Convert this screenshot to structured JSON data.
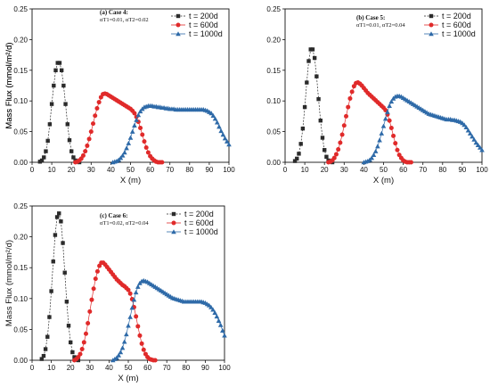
{
  "chart_data": [
    {
      "type": "scatter",
      "label": "(a) Case 4:",
      "params": "αT1=0.01, αT2=0.02",
      "xlabel": "X (m)",
      "ylabel": "Mass Flux (mmol/m²/d)",
      "xlim": [
        0,
        100
      ],
      "ylim": [
        0,
        0.25
      ],
      "xticks": [
        "0",
        "10",
        "20",
        "30",
        "40",
        "50",
        "60",
        "70",
        "80",
        "90",
        "100"
      ],
      "yticks": [
        "0.00",
        "0.05",
        "0.10",
        "0.15",
        "0.20",
        "0.25"
      ],
      "legend_position": "top-right",
      "series": [
        {
          "name": "t = 200d",
          "marker": "square",
          "color": "#2b2b2b",
          "dashed": true,
          "x": [
            4,
            5,
            6,
            7,
            8,
            9,
            10,
            11,
            12,
            13,
            14,
            15,
            16,
            17,
            18,
            19,
            20,
            21,
            22,
            23,
            24
          ],
          "y": [
            0.001,
            0.003,
            0.008,
            0.018,
            0.035,
            0.062,
            0.095,
            0.125,
            0.15,
            0.162,
            0.162,
            0.15,
            0.125,
            0.095,
            0.062,
            0.036,
            0.018,
            0.008,
            0.003,
            0.001,
            0.0
          ]
        },
        {
          "name": "t = 600d",
          "marker": "circle",
          "color": "#e02a2a",
          "dashed": false,
          "x": [
            22,
            23,
            24,
            25,
            26,
            27,
            28,
            29,
            30,
            31,
            32,
            33,
            34,
            35,
            36,
            37,
            38,
            39,
            40,
            41,
            42,
            43,
            44,
            45,
            46,
            47,
            48,
            49,
            50,
            51,
            52,
            53,
            54,
            55,
            56,
            57,
            58,
            59,
            60,
            61,
            62,
            63,
            64,
            65,
            66
          ],
          "y": [
            0.0,
            0.001,
            0.003,
            0.006,
            0.011,
            0.018,
            0.027,
            0.038,
            0.05,
            0.063,
            0.076,
            0.088,
            0.098,
            0.106,
            0.111,
            0.112,
            0.111,
            0.109,
            0.107,
            0.105,
            0.103,
            0.101,
            0.099,
            0.097,
            0.095,
            0.093,
            0.091,
            0.089,
            0.087,
            0.084,
            0.08,
            0.074,
            0.066,
            0.056,
            0.045,
            0.034,
            0.024,
            0.016,
            0.01,
            0.006,
            0.003,
            0.001,
            0.0,
            0.0,
            0.0
          ]
        },
        {
          "name": "t = 1000d",
          "marker": "triangle",
          "color": "#2e6aa8",
          "dashed": false,
          "x": [
            41,
            42,
            43,
            44,
            45,
            46,
            47,
            48,
            49,
            50,
            51,
            52,
            53,
            54,
            55,
            56,
            57,
            58,
            59,
            60,
            61,
            62,
            63,
            64,
            65,
            66,
            67,
            68,
            69,
            70,
            71,
            72,
            73,
            74,
            75,
            76,
            77,
            78,
            79,
            80,
            81,
            82,
            83,
            84,
            85,
            86,
            87,
            88,
            89,
            90,
            91,
            92,
            93,
            94,
            95,
            96,
            97,
            98,
            99,
            100
          ],
          "y": [
            0.0,
            0.001,
            0.002,
            0.004,
            0.007,
            0.011,
            0.016,
            0.023,
            0.031,
            0.04,
            0.05,
            0.06,
            0.069,
            0.077,
            0.083,
            0.087,
            0.09,
            0.091,
            0.092,
            0.092,
            0.092,
            0.091,
            0.091,
            0.09,
            0.09,
            0.089,
            0.089,
            0.088,
            0.088,
            0.087,
            0.087,
            0.087,
            0.086,
            0.086,
            0.086,
            0.086,
            0.086,
            0.086,
            0.086,
            0.086,
            0.086,
            0.086,
            0.086,
            0.086,
            0.086,
            0.086,
            0.086,
            0.085,
            0.084,
            0.082,
            0.08,
            0.076,
            0.071,
            0.065,
            0.058,
            0.051,
            0.045,
            0.039,
            0.034,
            0.029
          ]
        }
      ]
    },
    {
      "type": "scatter",
      "label": "(b) Case 5:",
      "params": "αT1=0.01, αT2=0.04",
      "xlabel": "X (m)",
      "ylabel": "Mass Flux (mmol/m²/d)",
      "xlim": [
        0,
        100
      ],
      "ylim": [
        0,
        0.25
      ],
      "xticks": [
        "0",
        "10",
        "20",
        "30",
        "40",
        "50",
        "60",
        "70",
        "80",
        "90",
        "100"
      ],
      "yticks": [
        "0.00",
        "0.05",
        "0.10",
        "0.15",
        "0.20",
        "0.25"
      ],
      "legend_position": "top-right",
      "series": [
        {
          "name": "t = 200d",
          "marker": "square",
          "color": "#2b2b2b",
          "dashed": true,
          "x": [
            5,
            6,
            7,
            8,
            9,
            10,
            11,
            12,
            13,
            14,
            15,
            16,
            17,
            18,
            19,
            20,
            21,
            22,
            23,
            24
          ],
          "y": [
            0.002,
            0.006,
            0.014,
            0.03,
            0.055,
            0.09,
            0.13,
            0.165,
            0.184,
            0.184,
            0.17,
            0.14,
            0.103,
            0.068,
            0.04,
            0.02,
            0.009,
            0.003,
            0.001,
            0.0
          ]
        },
        {
          "name": "t = 600d",
          "marker": "circle",
          "color": "#e02a2a",
          "dashed": false,
          "x": [
            22,
            23,
            24,
            25,
            26,
            27,
            28,
            29,
            30,
            31,
            32,
            33,
            34,
            35,
            36,
            37,
            38,
            39,
            40,
            41,
            42,
            43,
            44,
            45,
            46,
            47,
            48,
            49,
            50,
            51,
            52,
            53,
            54,
            55,
            56,
            57,
            58,
            59,
            60,
            61,
            62,
            63,
            64
          ],
          "y": [
            0.0,
            0.001,
            0.003,
            0.007,
            0.013,
            0.021,
            0.032,
            0.045,
            0.06,
            0.075,
            0.09,
            0.104,
            0.115,
            0.124,
            0.129,
            0.13,
            0.128,
            0.125,
            0.121,
            0.117,
            0.113,
            0.11,
            0.107,
            0.104,
            0.101,
            0.098,
            0.095,
            0.092,
            0.089,
            0.085,
            0.078,
            0.068,
            0.056,
            0.043,
            0.031,
            0.02,
            0.012,
            0.007,
            0.003,
            0.001,
            0.0,
            0.0,
            0.0
          ]
        },
        {
          "name": "t = 1000d",
          "marker": "triangle",
          "color": "#2e6aa8",
          "dashed": false,
          "x": [
            40,
            41,
            42,
            43,
            44,
            45,
            46,
            47,
            48,
            49,
            50,
            51,
            52,
            53,
            54,
            55,
            56,
            57,
            58,
            59,
            60,
            61,
            62,
            63,
            64,
            65,
            66,
            67,
            68,
            69,
            70,
            71,
            72,
            73,
            74,
            75,
            76,
            77,
            78,
            79,
            80,
            81,
            82,
            83,
            84,
            85,
            86,
            87,
            88,
            89,
            90,
            91,
            92,
            93,
            94,
            95,
            96,
            97,
            98,
            99,
            100
          ],
          "y": [
            0.0,
            0.001,
            0.002,
            0.004,
            0.007,
            0.012,
            0.018,
            0.026,
            0.036,
            0.047,
            0.059,
            0.071,
            0.082,
            0.092,
            0.099,
            0.104,
            0.107,
            0.108,
            0.108,
            0.107,
            0.105,
            0.103,
            0.101,
            0.099,
            0.097,
            0.095,
            0.093,
            0.091,
            0.089,
            0.087,
            0.085,
            0.083,
            0.081,
            0.079,
            0.078,
            0.077,
            0.076,
            0.075,
            0.074,
            0.073,
            0.072,
            0.071,
            0.07,
            0.07,
            0.07,
            0.069,
            0.069,
            0.068,
            0.067,
            0.066,
            0.064,
            0.061,
            0.057,
            0.052,
            0.047,
            0.042,
            0.037,
            0.032,
            0.028,
            0.024,
            0.02
          ]
        }
      ]
    },
    {
      "type": "scatter",
      "label": "(c) Case 6:",
      "params": "αT1=0.02, αT2=0.04",
      "xlabel": "X (m)",
      "ylabel": "Mass Flux (mmol/m²/d)",
      "xlim": [
        0,
        100
      ],
      "ylim": [
        0,
        0.25
      ],
      "xticks": [
        "0",
        "10",
        "20",
        "30",
        "40",
        "50",
        "60",
        "70",
        "80",
        "90",
        "100"
      ],
      "yticks": [
        "0.00",
        "0.05",
        "0.10",
        "0.15",
        "0.20",
        "0.25"
      ],
      "legend_position": "top-right",
      "series": [
        {
          "name": "t = 200d",
          "marker": "square",
          "color": "#2b2b2b",
          "dashed": true,
          "x": [
            5,
            6,
            7,
            8,
            9,
            10,
            11,
            12,
            13,
            14,
            15,
            16,
            17,
            18,
            19,
            20,
            21,
            22,
            23,
            24
          ],
          "y": [
            0.002,
            0.007,
            0.018,
            0.038,
            0.07,
            0.112,
            0.16,
            0.203,
            0.232,
            0.238,
            0.225,
            0.19,
            0.142,
            0.095,
            0.056,
            0.029,
            0.013,
            0.005,
            0.001,
            0.0
          ]
        },
        {
          "name": "t = 600d",
          "marker": "circle",
          "color": "#e02a2a",
          "dashed": false,
          "x": [
            22,
            23,
            24,
            25,
            26,
            27,
            28,
            29,
            30,
            31,
            32,
            33,
            34,
            35,
            36,
            37,
            38,
            39,
            40,
            41,
            42,
            43,
            44,
            45,
            46,
            47,
            48,
            49,
            50,
            51,
            52,
            53,
            54,
            55,
            56,
            57,
            58,
            59,
            60,
            61,
            62,
            63,
            64
          ],
          "y": [
            0.0,
            0.002,
            0.005,
            0.01,
            0.018,
            0.029,
            0.043,
            0.06,
            0.079,
            0.098,
            0.116,
            0.132,
            0.144,
            0.153,
            0.158,
            0.158,
            0.155,
            0.151,
            0.147,
            0.143,
            0.139,
            0.135,
            0.131,
            0.128,
            0.125,
            0.122,
            0.12,
            0.117,
            0.114,
            0.108,
            0.099,
            0.086,
            0.071,
            0.055,
            0.04,
            0.027,
            0.017,
            0.01,
            0.005,
            0.002,
            0.001,
            0.0,
            0.0
          ]
        },
        {
          "name": "t = 1000d",
          "marker": "triangle",
          "color": "#2e6aa8",
          "dashed": false,
          "x": [
            42,
            43,
            44,
            45,
            46,
            47,
            48,
            49,
            50,
            51,
            52,
            53,
            54,
            55,
            56,
            57,
            58,
            59,
            60,
            61,
            62,
            63,
            64,
            65,
            66,
            67,
            68,
            69,
            70,
            71,
            72,
            73,
            74,
            75,
            76,
            77,
            78,
            79,
            80,
            81,
            82,
            83,
            84,
            85,
            86,
            87,
            88,
            89,
            90,
            91,
            92,
            93,
            94,
            95,
            96,
            97,
            98,
            99,
            100
          ],
          "y": [
            0.0,
            0.002,
            0.004,
            0.008,
            0.013,
            0.02,
            0.03,
            0.042,
            0.056,
            0.07,
            0.085,
            0.098,
            0.11,
            0.119,
            0.125,
            0.128,
            0.129,
            0.128,
            0.127,
            0.125,
            0.123,
            0.121,
            0.119,
            0.117,
            0.115,
            0.113,
            0.111,
            0.109,
            0.107,
            0.105,
            0.103,
            0.101,
            0.1,
            0.099,
            0.098,
            0.097,
            0.096,
            0.095,
            0.095,
            0.095,
            0.095,
            0.095,
            0.095,
            0.095,
            0.095,
            0.095,
            0.095,
            0.094,
            0.093,
            0.091,
            0.089,
            0.086,
            0.082,
            0.077,
            0.071,
            0.064,
            0.057,
            0.048,
            0.04
          ]
        }
      ]
    }
  ]
}
